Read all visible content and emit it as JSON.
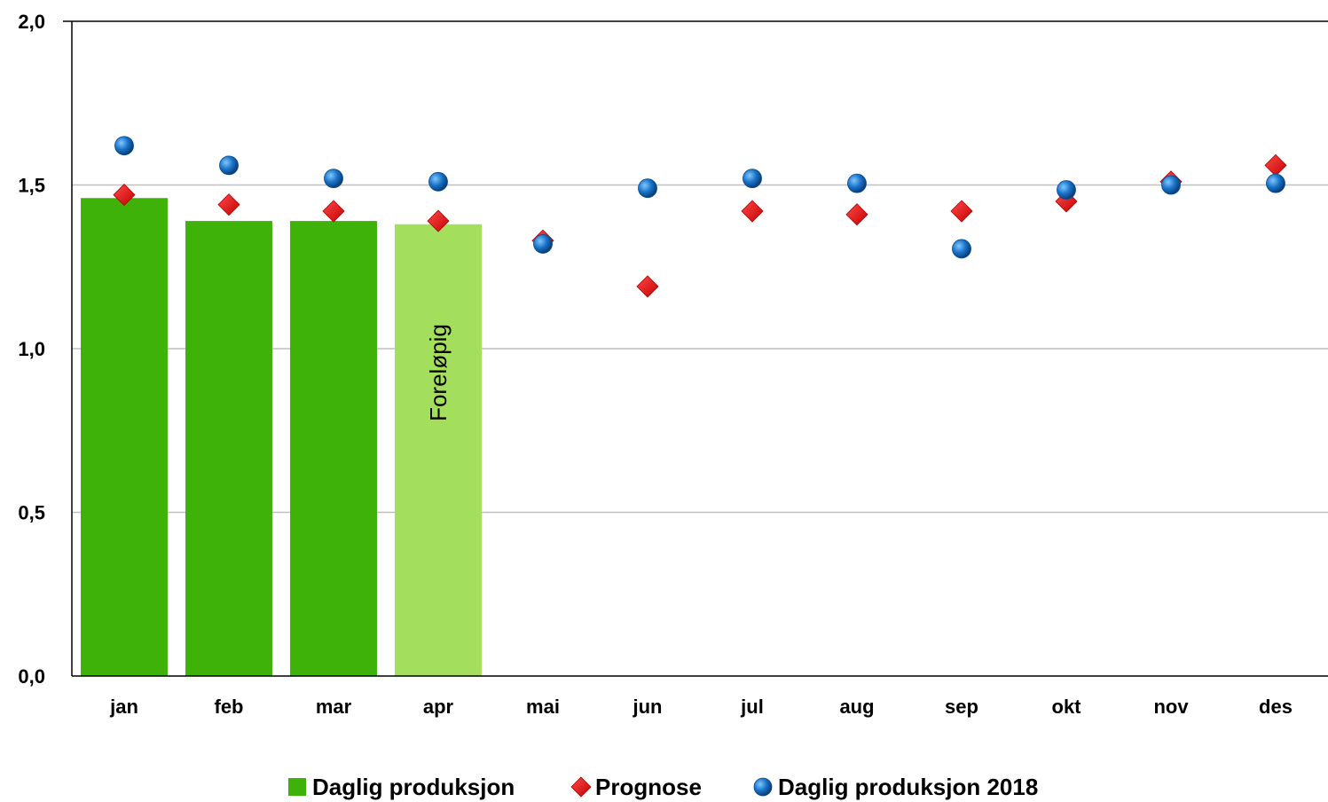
{
  "chart_data": {
    "type": "bar",
    "categories": [
      "jan",
      "feb",
      "mar",
      "apr",
      "mai",
      "jun",
      "jul",
      "aug",
      "sep",
      "okt",
      "nov",
      "des"
    ],
    "ylim": [
      0,
      2
    ],
    "yticks": [
      "0,0",
      "0,5",
      "1,0",
      "1,5",
      "2,0"
    ],
    "ytick_values": [
      0,
      0.5,
      1.0,
      1.5,
      2.0
    ],
    "grid": true,
    "legend_position": "bottom",
    "series": [
      {
        "name": "Daglig produksjon",
        "type": "bar",
        "color": "#3fb20a",
        "values": [
          1.46,
          1.39,
          1.39,
          1.38,
          null,
          null,
          null,
          null,
          null,
          null,
          null,
          null
        ],
        "preliminary_color": "#a3de5c",
        "preliminary_index": 3
      },
      {
        "name": "Prognose",
        "type": "scatter",
        "marker": "diamond",
        "color": "#ff0000",
        "values": [
          1.47,
          1.44,
          1.42,
          1.39,
          1.33,
          1.19,
          1.42,
          1.41,
          1.42,
          1.45,
          1.51,
          1.56
        ]
      },
      {
        "name": "Daglig produksjon 2018",
        "type": "scatter",
        "marker": "circle",
        "color": "#1a73c9",
        "values": [
          1.62,
          1.56,
          1.52,
          1.51,
          1.32,
          1.49,
          1.52,
          1.505,
          1.305,
          1.485,
          1.5,
          1.505
        ]
      }
    ],
    "annotations": [
      {
        "text": "Foreløpig",
        "category": "apr"
      }
    ]
  }
}
